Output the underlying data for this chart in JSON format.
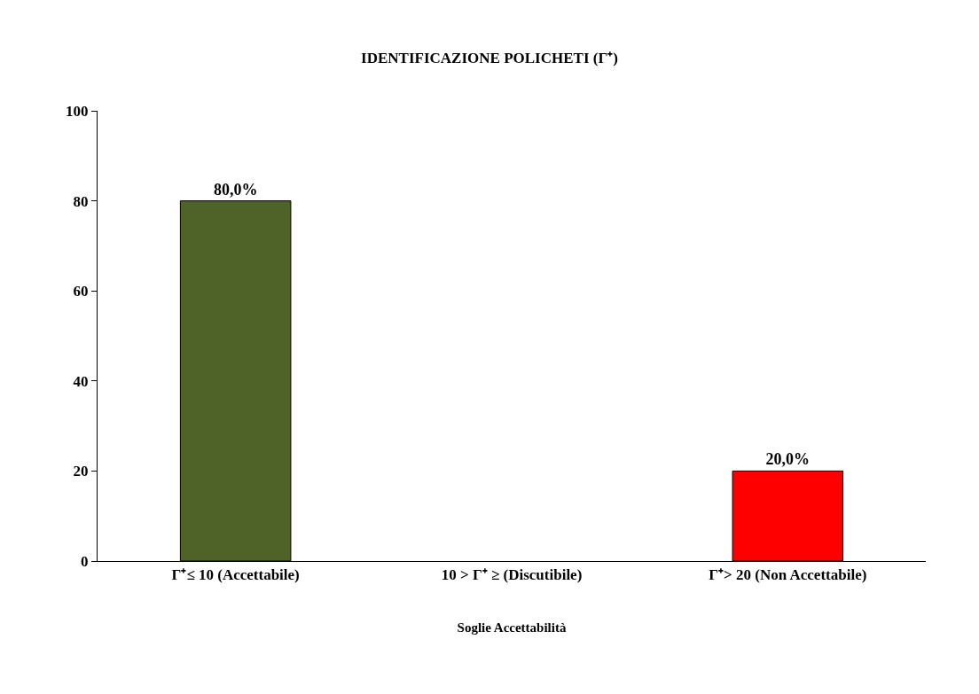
{
  "chart_data": {
    "type": "bar",
    "title": "IDENTIFICAZIONE POLICHETI (Γ⁺)",
    "xlabel": "Soglie Accettabilità",
    "categories": [
      "Γ⁺≤ 10 (Accettabile)",
      "10 > Γ⁺ ≥ (Discutibile)",
      "Γ⁺> 20 (Non Accettabile)"
    ],
    "values": [
      80,
      0,
      20
    ],
    "colors": [
      "#4f6228",
      "#c0c0c0",
      "#ff0000"
    ],
    "value_labels": [
      "80,0%",
      null,
      "20,0%"
    ],
    "ylim": [
      0,
      100
    ],
    "yticks": [
      0,
      20,
      40,
      60,
      80,
      100
    ]
  }
}
